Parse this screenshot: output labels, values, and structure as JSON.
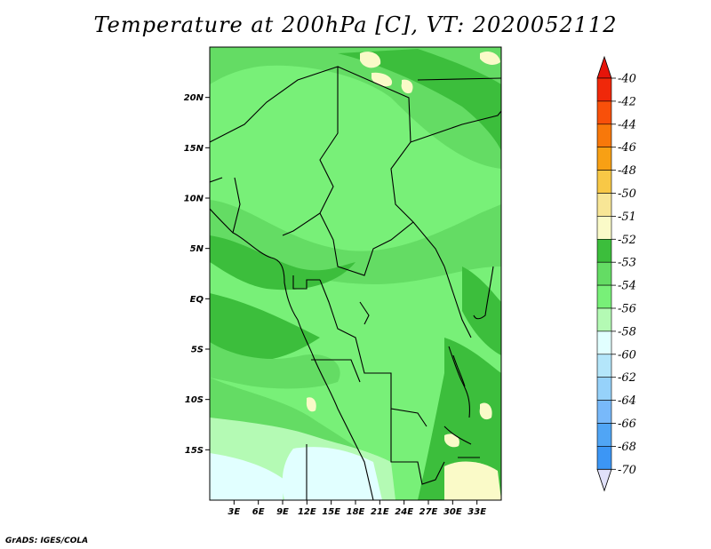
{
  "title": "Temperature at 200hPa [C], VT: 2020052112",
  "credit": "GrADS: IGES/COLA",
  "map": {
    "lon_range": [
      0,
      36
    ],
    "lat_range": [
      -20,
      25
    ],
    "lat_ticks": [
      {
        "lat": 20,
        "label": "20N"
      },
      {
        "lat": 15,
        "label": "15N"
      },
      {
        "lat": 10,
        "label": "10N"
      },
      {
        "lat": 5,
        "label": "5N"
      },
      {
        "lat": 0,
        "label": "EQ"
      },
      {
        "lat": -5,
        "label": "5S"
      },
      {
        "lat": -10,
        "label": "10S"
      },
      {
        "lat": -15,
        "label": "15S"
      }
    ],
    "lon_ticks": [
      {
        "lon": 3,
        "label": "3E"
      },
      {
        "lon": 6,
        "label": "6E"
      },
      {
        "lon": 9,
        "label": "9E"
      },
      {
        "lon": 12,
        "label": "12E"
      },
      {
        "lon": 15,
        "label": "15E"
      },
      {
        "lon": 18,
        "label": "18E"
      },
      {
        "lon": 21,
        "label": "21E"
      },
      {
        "lon": 24,
        "label": "24E"
      },
      {
        "lon": 27,
        "label": "27E"
      },
      {
        "lon": 30,
        "label": "30E"
      },
      {
        "lon": 33,
        "label": "33E"
      }
    ]
  },
  "colorbar": {
    "levels": [
      {
        "label": "-40",
        "color": "#f0280a"
      },
      {
        "label": "-42",
        "color": "#f8500a"
      },
      {
        "label": "-44",
        "color": "#f8780a"
      },
      {
        "label": "-46",
        "color": "#f8a014"
      },
      {
        "label": "-48",
        "color": "#f8c846"
      },
      {
        "label": "-50",
        "color": "#f8e696"
      },
      {
        "label": "-51",
        "color": "#fafac8"
      },
      {
        "label": "-52",
        "color": "#3cbe3c"
      },
      {
        "label": "-53",
        "color": "#64dc64"
      },
      {
        "label": "-54",
        "color": "#78f078"
      },
      {
        "label": "-56",
        "color": "#b4fab4"
      },
      {
        "label": "-58",
        "color": "#e1ffff"
      },
      {
        "label": "-60",
        "color": "#b4e6fa"
      },
      {
        "label": "-62",
        "color": "#96d2fa"
      },
      {
        "label": "-64",
        "color": "#78b9fa"
      },
      {
        "label": "-66",
        "color": "#50a5f5"
      },
      {
        "label": "-68",
        "color": "#3c96f5"
      },
      {
        "label": "-70",
        "color": "#2882f0"
      }
    ],
    "below_min_color": "#1464d2",
    "extra_colors": [
      "#0f4bb4",
      "#0a1e78"
    ],
    "bottom_triangle_color": "#e1e1fa",
    "top_triangle_color": "#e6140a"
  }
}
